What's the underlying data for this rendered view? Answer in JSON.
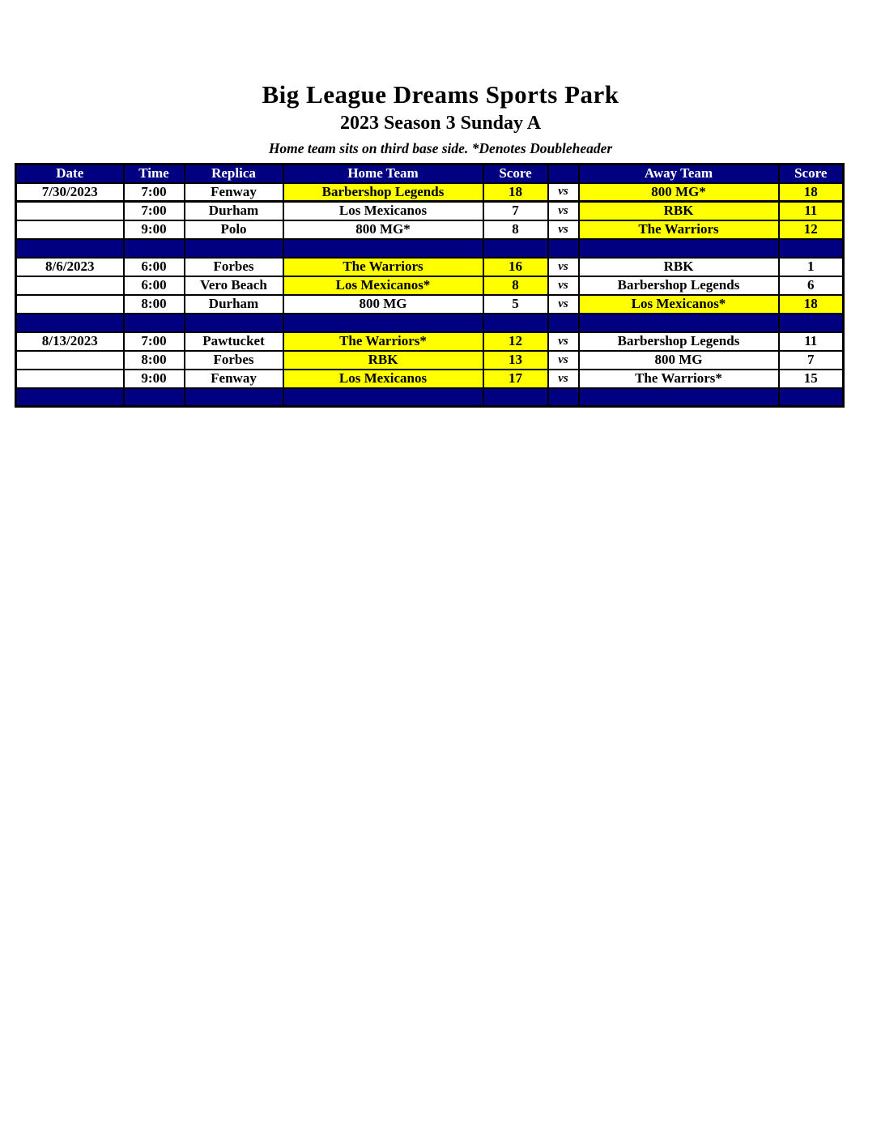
{
  "page": {
    "title": "Big League Dreams Sports Park",
    "subtitle": "2023 Season 3 Sunday A",
    "note": "Home team sits on third base side.  *Denotes Doubleheader"
  },
  "colors": {
    "navy": "#000080",
    "yellow": "#FFFF00",
    "white": "#FFFFFF",
    "text": "#000000",
    "header_text": "#FFFFFF"
  },
  "table": {
    "headers": [
      "Date",
      "Time",
      "Replica",
      "Home Team",
      "Score",
      "",
      "Away Team",
      "Score"
    ],
    "vs_label": "vs",
    "rows": [
      {
        "type": "game",
        "date": "7/30/2023",
        "time": "7:00",
        "replica": "Fenway",
        "home": "Barbershop Legends",
        "home_score": "18",
        "home_win": true,
        "away": "800 MG*",
        "away_score": "18",
        "away_win": true
      },
      {
        "type": "game",
        "date": "",
        "time": "7:00",
        "replica": "Durham",
        "home": "Los Mexicanos",
        "home_score": "7",
        "home_win": false,
        "away": "RBK",
        "away_score": "11",
        "away_win": true
      },
      {
        "type": "game",
        "date": "",
        "time": "9:00",
        "replica": "Polo",
        "home": "800 MG*",
        "home_score": "8",
        "home_win": false,
        "away": "The Warriors",
        "away_score": "12",
        "away_win": true
      },
      {
        "type": "separator"
      },
      {
        "type": "game",
        "date": "8/6/2023",
        "time": "6:00",
        "replica": "Forbes",
        "home": "The Warriors",
        "home_score": "16",
        "home_win": true,
        "away": "RBK",
        "away_score": "1",
        "away_win": false
      },
      {
        "type": "game",
        "date": "",
        "time": "6:00",
        "replica": "Vero Beach",
        "home": "Los Mexicanos*",
        "home_score": "8",
        "home_win": true,
        "away": "Barbershop Legends",
        "away_score": "6",
        "away_win": false
      },
      {
        "type": "game",
        "date": "",
        "time": "8:00",
        "replica": "Durham",
        "home": "800 MG",
        "home_score": "5",
        "home_win": false,
        "away": "Los Mexicanos*",
        "away_score": "18",
        "away_win": true
      },
      {
        "type": "separator"
      },
      {
        "type": "game",
        "date": "8/13/2023",
        "time": "7:00",
        "replica": "Pawtucket",
        "home": "The Warriors*",
        "home_score": "12",
        "home_win": true,
        "away": "Barbershop Legends",
        "away_score": "11",
        "away_win": false
      },
      {
        "type": "game",
        "date": "",
        "time": "8:00",
        "replica": "Forbes",
        "home": "RBK",
        "home_score": "13",
        "home_win": true,
        "away": "800 MG",
        "away_score": "7",
        "away_win": false
      },
      {
        "type": "game",
        "date": "",
        "time": "9:00",
        "replica": "Fenway",
        "home": "Los Mexicanos",
        "home_score": "17",
        "home_win": true,
        "away": "The Warriors*",
        "away_score": "15",
        "away_win": false
      },
      {
        "type": "separator"
      }
    ]
  }
}
